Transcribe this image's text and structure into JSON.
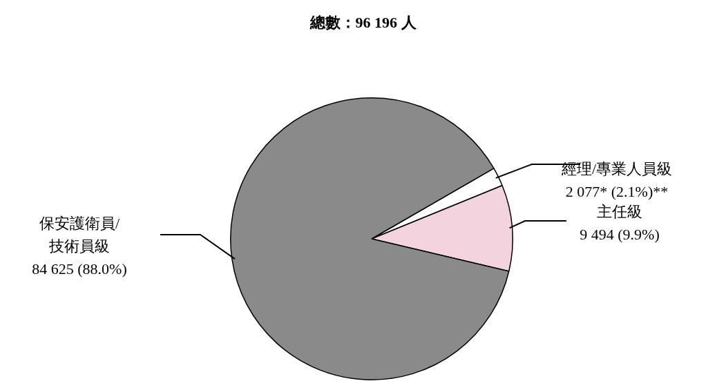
{
  "chart_data": {
    "type": "pie",
    "title": "總數：96 196 人",
    "categories": [
      "經理/專業人員級",
      "主任級",
      "保安護衛員/\n技術員級"
    ],
    "values": [
      2077,
      9494,
      84625
    ],
    "value_labels": [
      "2 077* (2.1%)**",
      "9 494 (9.9%)",
      "84 625 (88.0%)"
    ],
    "colors": [
      "#ffffff",
      "#f2d3de",
      "#8a8a8a"
    ]
  }
}
